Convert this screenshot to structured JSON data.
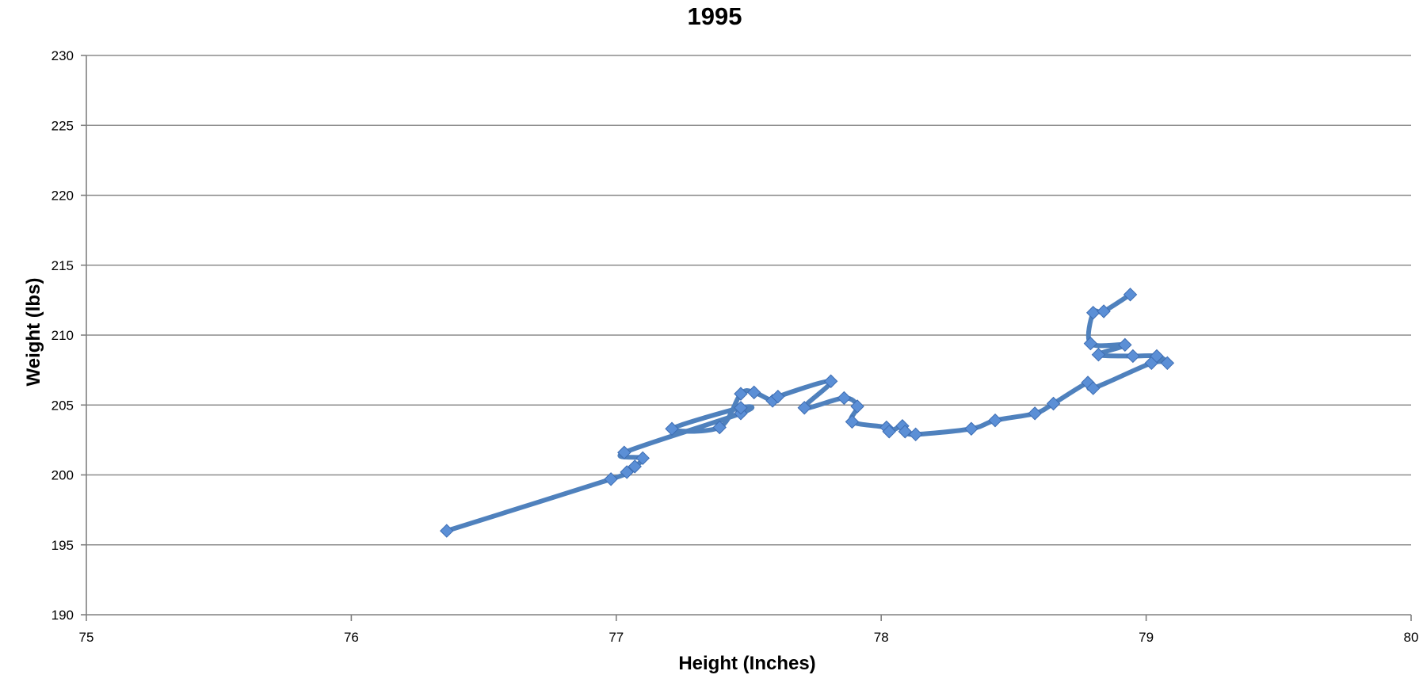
{
  "chart_data": {
    "type": "line",
    "title": "1995",
    "xlabel": "Height (Inches)",
    "ylabel": "Weight (lbs)",
    "xlim": [
      75,
      80
    ],
    "ylim": [
      190,
      230
    ],
    "xticks": [
      75,
      76,
      77,
      78,
      79,
      80
    ],
    "yticks": [
      190,
      195,
      200,
      205,
      210,
      215,
      220,
      225,
      230
    ],
    "grid": true,
    "legend": "none",
    "smooth": true,
    "series": [
      {
        "color": "#4f81bd",
        "marker": "diamond",
        "marker_color": "#5b8fd6",
        "points": [
          [
            76.36,
            196.0
          ],
          [
            76.98,
            199.7
          ],
          [
            77.04,
            200.2
          ],
          [
            77.07,
            200.6
          ],
          [
            77.1,
            201.2
          ],
          [
            77.03,
            201.6
          ],
          [
            77.47,
            204.4
          ],
          [
            77.47,
            204.8
          ],
          [
            77.21,
            203.3
          ],
          [
            77.39,
            203.4
          ],
          [
            77.47,
            205.8
          ],
          [
            77.52,
            205.9
          ],
          [
            77.59,
            205.3
          ],
          [
            77.61,
            205.6
          ],
          [
            77.81,
            206.7
          ],
          [
            77.71,
            204.8
          ],
          [
            77.86,
            205.5
          ],
          [
            77.91,
            204.9
          ],
          [
            77.89,
            203.8
          ],
          [
            78.02,
            203.4
          ],
          [
            78.03,
            203.1
          ],
          [
            78.08,
            203.5
          ],
          [
            78.09,
            203.1
          ],
          [
            78.13,
            202.9
          ],
          [
            78.34,
            203.3
          ],
          [
            78.43,
            203.9
          ],
          [
            78.58,
            204.4
          ],
          [
            78.65,
            205.1
          ],
          [
            78.78,
            206.6
          ],
          [
            78.8,
            206.2
          ],
          [
            79.02,
            208.0
          ],
          [
            79.08,
            208.0
          ],
          [
            79.04,
            208.5
          ],
          [
            78.95,
            208.5
          ],
          [
            78.82,
            208.6
          ],
          [
            78.92,
            209.3
          ],
          [
            78.79,
            209.4
          ],
          [
            78.8,
            211.6
          ],
          [
            78.84,
            211.7
          ],
          [
            78.94,
            212.9
          ]
        ]
      }
    ]
  }
}
